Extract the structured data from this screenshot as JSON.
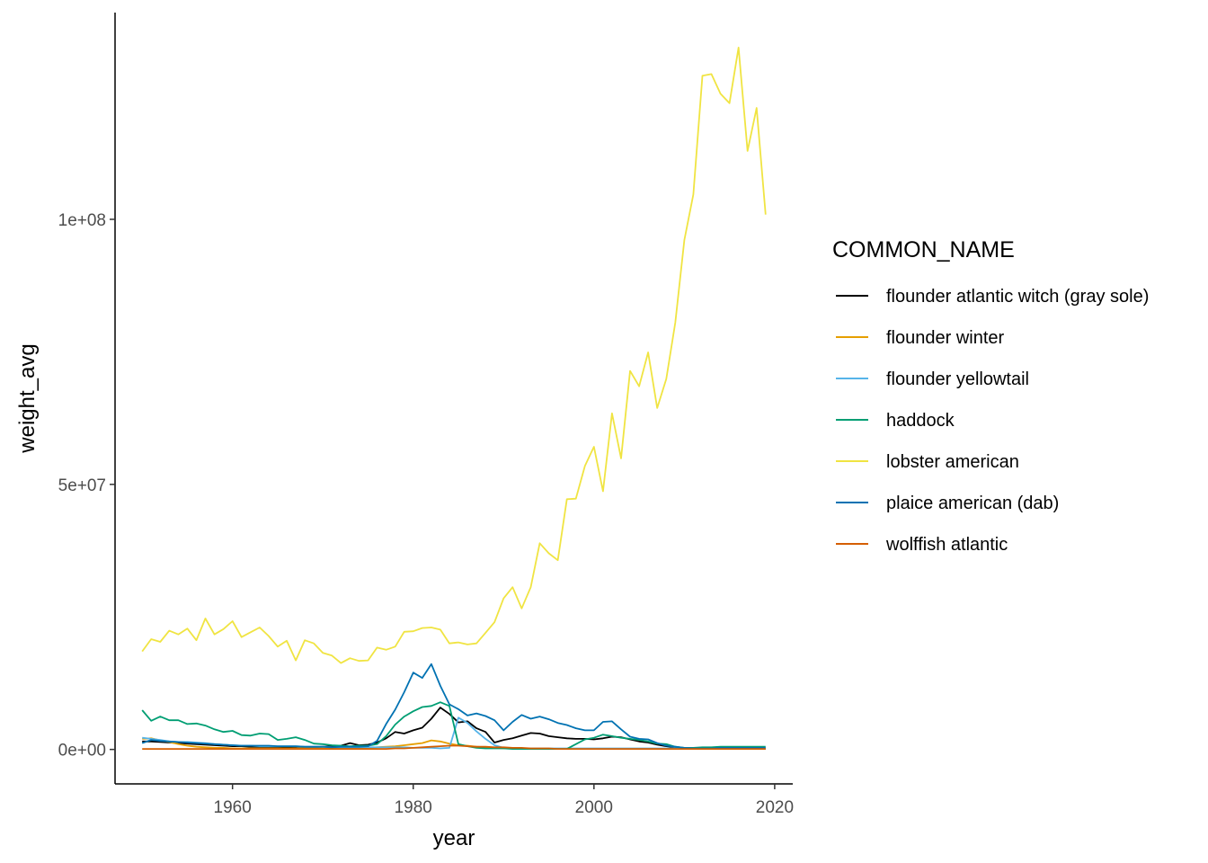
{
  "chart_data": {
    "type": "line",
    "title": "",
    "xlabel": "year",
    "ylabel": "weight_avg",
    "xlim": [
      1947,
      2022
    ],
    "ylim": [
      -6500000,
      139000000
    ],
    "x_ticks": [
      1960,
      1980,
      2000,
      2020
    ],
    "y_ticks": [
      0,
      50000000,
      100000000
    ],
    "x_tick_labels": [
      "1960",
      "1980",
      "2000",
      "2020"
    ],
    "y_tick_labels": [
      "0e+00",
      "5e+07",
      "1e+08"
    ],
    "grid": false,
    "legend": {
      "title": "COMMON_NAME",
      "position": "right"
    },
    "series": [
      {
        "name": "flounder atlantic witch (gray sole)",
        "color": "#000000",
        "x": [
          1950,
          1951,
          1952,
          1953,
          1954,
          1955,
          1956,
          1957,
          1958,
          1959,
          1960,
          1961,
          1962,
          1963,
          1964,
          1965,
          1966,
          1967,
          1968,
          1969,
          1970,
          1971,
          1972,
          1973,
          1974,
          1975,
          1976,
          1977,
          1978,
          1979,
          1980,
          1981,
          1982,
          1983,
          1984,
          1985,
          1986,
          1987,
          1988,
          1989,
          1990,
          1991,
          1992,
          1993,
          1994,
          1995,
          1996,
          1997,
          1998,
          1999,
          2000,
          2001,
          2002,
          2003,
          2004,
          2005,
          2006,
          2007,
          2008,
          2009,
          2010,
          2011,
          2012,
          2013,
          2014,
          2015,
          2016,
          2017,
          2018,
          2019
        ],
        "y": [
          1500000,
          1500000,
          1400000,
          1300000,
          1200000,
          1100000,
          1000000,
          900000,
          800000,
          700000,
          600000,
          600000,
          500000,
          500000,
          500000,
          500000,
          400000,
          500000,
          400000,
          400000,
          500000,
          600000,
          700000,
          1200000,
          800000,
          900000,
          1300000,
          2100000,
          3300000,
          3000000,
          3600000,
          4100000,
          5800000,
          7900000,
          6700000,
          5100000,
          5300000,
          4000000,
          3300000,
          1300000,
          1800000,
          2100000,
          2600000,
          3100000,
          3000000,
          2500000,
          2300000,
          2100000,
          2000000,
          2000000,
          1900000,
          2100000,
          2400000,
          2300000,
          1900000,
          1500000,
          1300000,
          900000,
          600000,
          400000,
          200000,
          100000,
          100000,
          100000,
          100000,
          100000,
          100000,
          100000,
          100000,
          100000
        ]
      },
      {
        "name": "flounder winter",
        "color": "#E69F00",
        "x": [
          1950,
          1951,
          1952,
          1953,
          1954,
          1955,
          1956,
          1957,
          1958,
          1959,
          1960,
          1961,
          1962,
          1963,
          1964,
          1965,
          1966,
          1967,
          1968,
          1969,
          1970,
          1971,
          1972,
          1973,
          1974,
          1975,
          1976,
          1977,
          1978,
          1979,
          1980,
          1981,
          1982,
          1983,
          1984,
          1985,
          1986,
          1987,
          1988,
          1989,
          1990,
          1991,
          1992,
          1993,
          1994,
          1995,
          1996,
          1997,
          1998,
          1999,
          2000,
          2001,
          2002,
          2003,
          2004,
          2005,
          2006,
          2007,
          2008,
          2009,
          2010,
          2011,
          2012,
          2013,
          2014,
          2015,
          2016,
          2017,
          2018,
          2019
        ],
        "y": [
          2000000,
          2100000,
          1700000,
          1400000,
          1000000,
          700000,
          500000,
          400000,
          300000,
          300000,
          200000,
          200000,
          200000,
          200000,
          200000,
          200000,
          200000,
          200000,
          200000,
          200000,
          200000,
          200000,
          200000,
          200000,
          200000,
          300000,
          400000,
          500000,
          600000,
          800000,
          1000000,
          1200000,
          1700000,
          1500000,
          1100000,
          800000,
          700000,
          500000,
          400000,
          300000,
          200000,
          200000,
          100000,
          100000,
          100000,
          100000,
          100000,
          100000,
          100000,
          100000,
          100000,
          100000,
          100000,
          100000,
          100000,
          100000,
          100000,
          100000,
          100000,
          100000,
          100000,
          100000,
          100000,
          100000,
          100000,
          100000,
          100000,
          100000,
          100000,
          100000
        ]
      },
      {
        "name": "flounder yellowtail",
        "color": "#56B4E9",
        "x": [
          1950,
          1951,
          1952,
          1953,
          1954,
          1955,
          1956,
          1957,
          1958,
          1959,
          1960,
          1961,
          1962,
          1963,
          1964,
          1965,
          1966,
          1967,
          1968,
          1969,
          1970,
          1971,
          1972,
          1973,
          1974,
          1975,
          1976,
          1977,
          1978,
          1979,
          1980,
          1981,
          1982,
          1983,
          1984,
          1985,
          1986,
          1987,
          1988,
          1989,
          1990,
          1991,
          1992,
          1993,
          1994,
          1995,
          1996,
          1997,
          1998,
          1999,
          2000,
          2001,
          2002,
          2003,
          2004,
          2005,
          2006,
          2007,
          2008,
          2009,
          2010,
          2011,
          2012,
          2013,
          2014,
          2015,
          2016,
          2017,
          2018,
          2019
        ],
        "y": [
          2200000,
          2000000,
          1800000,
          1500000,
          1400000,
          1400000,
          1300000,
          1200000,
          1000000,
          900000,
          800000,
          700000,
          700000,
          600000,
          600000,
          600000,
          600000,
          600000,
          500000,
          500000,
          500000,
          400000,
          400000,
          400000,
          400000,
          400000,
          400000,
          400000,
          400000,
          400000,
          300000,
          300000,
          300000,
          200000,
          300000,
          6000000,
          5000000,
          3400000,
          2000000,
          800000,
          300000,
          200000,
          200000,
          200000,
          200000,
          200000,
          200000,
          200000,
          200000,
          200000,
          200000,
          200000,
          200000,
          200000,
          200000,
          200000,
          200000,
          200000,
          200000,
          200000,
          200000,
          200000,
          200000,
          200000,
          200000,
          200000,
          200000,
          200000,
          200000,
          200000
        ]
      },
      {
        "name": "haddock",
        "color": "#009E73",
        "x": [
          1950,
          1951,
          1952,
          1953,
          1954,
          1955,
          1956,
          1957,
          1958,
          1959,
          1960,
          1961,
          1962,
          1963,
          1964,
          1965,
          1966,
          1967,
          1968,
          1969,
          1970,
          1971,
          1972,
          1973,
          1974,
          1975,
          1976,
          1977,
          1978,
          1979,
          1980,
          1981,
          1982,
          1983,
          1984,
          1985,
          1986,
          1987,
          1988,
          1989,
          1990,
          1991,
          1992,
          1993,
          1994,
          1995,
          1996,
          1997,
          1998,
          1999,
          2000,
          2001,
          2002,
          2003,
          2004,
          2005,
          2006,
          2007,
          2008,
          2009,
          2010,
          2011,
          2012,
          2013,
          2014,
          2015,
          2016,
          2017,
          2018,
          2019
        ],
        "y": [
          7400000,
          5400000,
          6200000,
          5500000,
          5500000,
          4800000,
          4900000,
          4500000,
          3800000,
          3300000,
          3500000,
          2700000,
          2600000,
          3000000,
          2900000,
          1800000,
          2000000,
          2300000,
          1800000,
          1100000,
          1000000,
          800000,
          700000,
          600000,
          700000,
          700000,
          1000000,
          2500000,
          4700000,
          6200000,
          7200000,
          8000000,
          8200000,
          8900000,
          8200000,
          1000000,
          600000,
          300000,
          200000,
          200000,
          200000,
          100000,
          100000,
          100000,
          100000,
          100000,
          100000,
          100000,
          1000000,
          1900000,
          2200000,
          2800000,
          2500000,
          2200000,
          2000000,
          1800000,
          1500000,
          1100000,
          1000000,
          500000,
          300000,
          300000,
          400000,
          400000,
          500000,
          500000,
          500000,
          500000,
          500000,
          500000
        ]
      },
      {
        "name": "lobster american",
        "color": "#F0E442",
        "x": [
          1950,
          1951,
          1952,
          1953,
          1954,
          1955,
          1956,
          1957,
          1958,
          1959,
          1960,
          1961,
          1962,
          1963,
          1964,
          1965,
          1966,
          1967,
          1968,
          1969,
          1970,
          1971,
          1972,
          1973,
          1974,
          1975,
          1976,
          1977,
          1978,
          1979,
          1980,
          1981,
          1982,
          1983,
          1984,
          1985,
          1986,
          1987,
          1988,
          1989,
          1990,
          1991,
          1992,
          1993,
          1994,
          1995,
          1996,
          1997,
          1998,
          1999,
          2000,
          2001,
          2002,
          2003,
          2004,
          2005,
          2006,
          2007,
          2008,
          2009,
          2010,
          2011,
          2012,
          2013,
          2014,
          2015,
          2016,
          2017,
          2018,
          2019
        ],
        "y": [
          18500000,
          20800000,
          20300000,
          22400000,
          21700000,
          22800000,
          20600000,
          24700000,
          21700000,
          22700000,
          24200000,
          21200000,
          22100000,
          23000000,
          21400000,
          19400000,
          20500000,
          16800000,
          20600000,
          20000000,
          18200000,
          17700000,
          16300000,
          17200000,
          16700000,
          16800000,
          19200000,
          18800000,
          19400000,
          22200000,
          22300000,
          22900000,
          23000000,
          22600000,
          20000000,
          20200000,
          19800000,
          20000000,
          22000000,
          24000000,
          28500000,
          30600000,
          26600000,
          30600000,
          38900000,
          37000000,
          35700000,
          47200000,
          47300000,
          53500000,
          57100000,
          48700000,
          63400000,
          54900000,
          71400000,
          68500000,
          74900000,
          64400000,
          69900000,
          80500000,
          96100000,
          104700000,
          127100000,
          127400000,
          123700000,
          121900000,
          132400000,
          112900000,
          121000000,
          100900000
        ]
      },
      {
        "name": "plaice american (dab)",
        "color": "#0072B2",
        "x": [
          1950,
          1951,
          1952,
          1953,
          1954,
          1955,
          1956,
          1957,
          1958,
          1959,
          1960,
          1961,
          1962,
          1963,
          1964,
          1965,
          1966,
          1967,
          1968,
          1969,
          1970,
          1971,
          1972,
          1973,
          1974,
          1975,
          1976,
          1977,
          1978,
          1979,
          1980,
          1981,
          1982,
          1983,
          1984,
          1985,
          1986,
          1987,
          1988,
          1989,
          1990,
          1991,
          1992,
          1993,
          1994,
          1995,
          1996,
          1997,
          1998,
          1999,
          2000,
          2001,
          2002,
          2003,
          2004,
          2005,
          2006,
          2007,
          2008,
          2009,
          2010,
          2011,
          2012,
          2013,
          2014,
          2015,
          2016,
          2017,
          2018,
          2019
        ],
        "y": [
          1200000,
          1800000,
          1600000,
          1500000,
          1400000,
          1300000,
          1200000,
          1100000,
          1000000,
          900000,
          800000,
          700000,
          700000,
          700000,
          700000,
          600000,
          600000,
          600000,
          500000,
          500000,
          500000,
          400000,
          500000,
          500000,
          500000,
          600000,
          1600000,
          4800000,
          7500000,
          10800000,
          14500000,
          13500000,
          16100000,
          12000000,
          8500000,
          7600000,
          6400000,
          6800000,
          6300000,
          5500000,
          3600000,
          5200000,
          6500000,
          5800000,
          6200000,
          5700000,
          5000000,
          4600000,
          4000000,
          3600000,
          3600000,
          5200000,
          5300000,
          3800000,
          2400000,
          2000000,
          1900000,
          1200000,
          700000,
          500000,
          300000,
          200000,
          200000,
          200000,
          300000,
          300000,
          300000,
          300000,
          300000,
          300000
        ]
      },
      {
        "name": "wolffish atlantic",
        "color": "#D55E00",
        "x": [
          1950,
          1951,
          1952,
          1953,
          1954,
          1955,
          1956,
          1957,
          1958,
          1959,
          1960,
          1961,
          1962,
          1963,
          1964,
          1965,
          1966,
          1967,
          1968,
          1969,
          1970,
          1971,
          1972,
          1973,
          1974,
          1975,
          1976,
          1977,
          1978,
          1979,
          1980,
          1981,
          1982,
          1983,
          1984,
          1985,
          1986,
          1987,
          1988,
          1989,
          1990,
          1991,
          1992,
          1993,
          1994,
          1995,
          1996,
          1997,
          1998,
          1999,
          2000,
          2001,
          2002,
          2003,
          2004,
          2005,
          2006,
          2007,
          2008,
          2009,
          2010,
          2011,
          2012,
          2013,
          2014,
          2015,
          2016,
          2017,
          2018,
          2019
        ],
        "y": [
          100000,
          100000,
          100000,
          100000,
          100000,
          100000,
          100000,
          100000,
          100000,
          100000,
          100000,
          100000,
          100000,
          100000,
          100000,
          100000,
          100000,
          100000,
          100000,
          100000,
          100000,
          100000,
          100000,
          100000,
          100000,
          100000,
          100000,
          100000,
          200000,
          200000,
          300000,
          400000,
          500000,
          600000,
          700000,
          700000,
          600000,
          500000,
          500000,
          400000,
          400000,
          300000,
          300000,
          200000,
          200000,
          200000,
          100000,
          100000,
          100000,
          100000,
          100000,
          100000,
          100000,
          100000,
          100000,
          100000,
          100000,
          100000,
          100000,
          100000,
          100000,
          100000,
          100000,
          100000,
          100000,
          100000,
          100000,
          100000,
          100000,
          100000
        ]
      }
    ]
  }
}
